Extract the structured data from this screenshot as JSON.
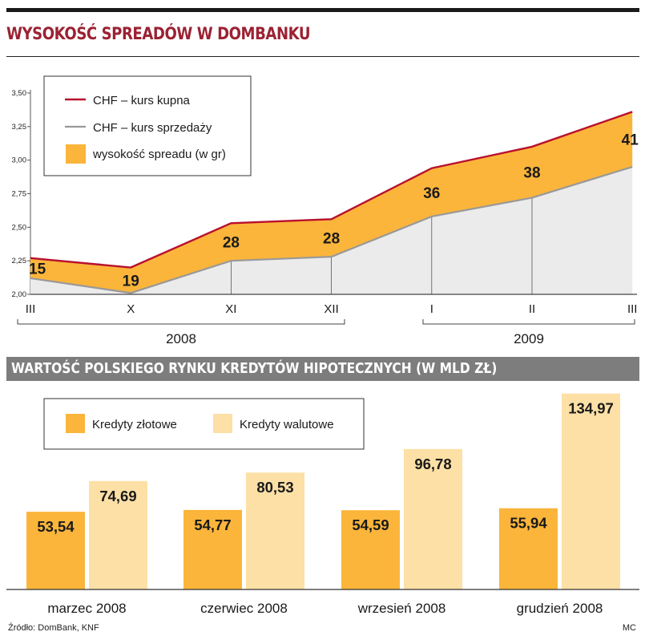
{
  "title": "WYSOKOŚĆ SPREADÓW W DOMBANKU",
  "subtitle2": "WARTOŚĆ POLSKIEGO RYNKU KREDYTÓW HIPOTECZNYCH (W MLD ZŁ)",
  "source": "Źródło: DomBank, KNF",
  "credit": "MC",
  "colors": {
    "title": "#9b2233",
    "buy_line": "#b8102e",
    "sell_line": "#999999",
    "spread_fill": "#fbb53b",
    "zloty_bar": "#fbb53b",
    "foreign_bar": "#fde0a6",
    "area_gray": "#ebebeb"
  },
  "chart_data": [
    {
      "type": "area",
      "title": "WYSOKOŚĆ SPREADÓW W DOMBANKU",
      "categories": [
        "III",
        "X",
        "XI",
        "XII",
        "I",
        "II",
        "III"
      ],
      "year_groups": [
        {
          "label": "2008",
          "from": "III",
          "to": "XII"
        },
        {
          "label": "2009",
          "from": "I",
          "to": "III"
        }
      ],
      "series": [
        {
          "name": "CHF – kurs kupna",
          "values": [
            2.27,
            2.2,
            2.53,
            2.56,
            2.94,
            3.1,
            3.36
          ]
        },
        {
          "name": "CHF – kurs sprzedaży",
          "values": [
            2.12,
            2.01,
            2.25,
            2.28,
            2.58,
            2.72,
            2.95
          ]
        }
      ],
      "spread_label": "wysokość spreadu (w gr)",
      "spread_values": [
        15,
        19,
        28,
        28,
        36,
        38,
        41
      ],
      "y_ticks": [
        "2,00",
        "2,25",
        "2,50",
        "2,75",
        "3,00",
        "3,25",
        "3,50"
      ],
      "ylim": [
        2.0,
        3.5
      ],
      "grid": "vertical",
      "legend": "top-left"
    },
    {
      "type": "bar",
      "title": "WARTOŚĆ POLSKIEGO RYNKU KREDYTÓW HIPOTECZNYCH (W MLD ZŁ)",
      "categories": [
        "marzec 2008",
        "czerwiec 2008",
        "wrzesień 2008",
        "grudzień 2008"
      ],
      "series": [
        {
          "name": "Kredyty złotowe",
          "values": [
            53.54,
            54.77,
            54.59,
            55.94
          ],
          "labels": [
            "53,54",
            "54,77",
            "54,59",
            "55,94"
          ]
        },
        {
          "name": "Kredyty walutowe",
          "values": [
            74.69,
            80.53,
            96.78,
            134.97
          ],
          "labels": [
            "74,69",
            "80,53",
            "96,78",
            "134,97"
          ]
        }
      ],
      "legend": "top-left"
    }
  ]
}
